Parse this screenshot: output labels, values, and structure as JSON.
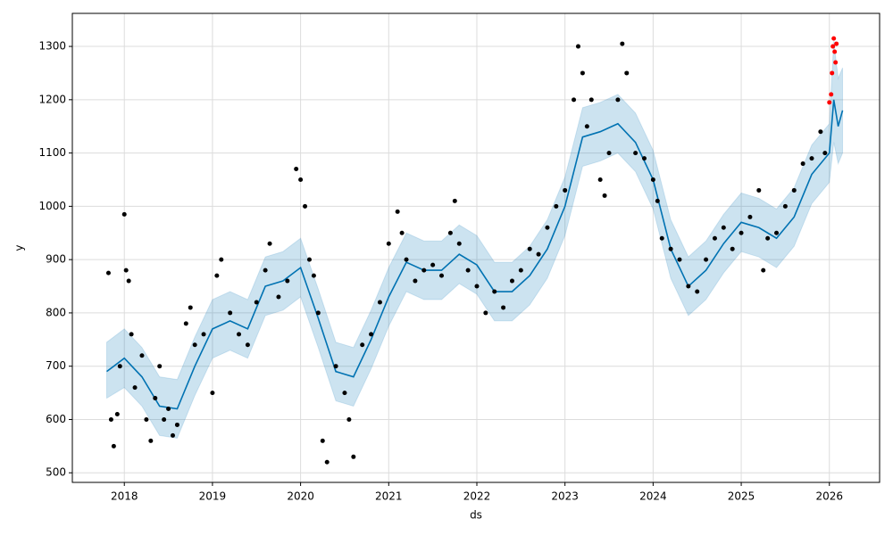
{
  "chart_data": {
    "type": "line",
    "xlabel": "ds",
    "ylabel": "y",
    "xlim": [
      2017.41,
      2026.57
    ],
    "ylim": [
      482,
      1362
    ],
    "xticks": [
      2018,
      2019,
      2020,
      2021,
      2022,
      2023,
      2024,
      2025,
      2026
    ],
    "yticks": [
      500,
      600,
      700,
      800,
      900,
      1000,
      1100,
      1200,
      1300
    ],
    "grid": true,
    "forecast": {
      "color": "#0072B2",
      "band_color": "#0072B2",
      "x": [
        2017.8,
        2018.0,
        2018.2,
        2018.4,
        2018.6,
        2018.8,
        2019.0,
        2019.2,
        2019.4,
        2019.6,
        2019.8,
        2020.0,
        2020.2,
        2020.4,
        2020.6,
        2020.8,
        2021.0,
        2021.2,
        2021.4,
        2021.6,
        2021.8,
        2022.0,
        2022.2,
        2022.4,
        2022.6,
        2022.8,
        2023.0,
        2023.2,
        2023.4,
        2023.6,
        2023.8,
        2024.0,
        2024.2,
        2024.4,
        2024.6,
        2024.8,
        2025.0,
        2025.2,
        2025.4,
        2025.6,
        2025.8,
        2026.0,
        2026.05,
        2026.1,
        2026.15
      ],
      "values": [
        690,
        715,
        680,
        625,
        620,
        700,
        770,
        785,
        770,
        850,
        860,
        885,
        790,
        690,
        680,
        750,
        830,
        895,
        880,
        880,
        910,
        890,
        840,
        840,
        870,
        920,
        1000,
        1130,
        1140,
        1155,
        1120,
        1050,
        920,
        850,
        880,
        930,
        970,
        960,
        940,
        980,
        1060,
        1100,
        1200,
        1150,
        1180
      ],
      "lower": [
        640,
        660,
        625,
        570,
        565,
        645,
        715,
        730,
        715,
        795,
        805,
        830,
        735,
        635,
        625,
        695,
        775,
        840,
        825,
        825,
        855,
        835,
        785,
        785,
        815,
        865,
        945,
        1075,
        1085,
        1100,
        1065,
        995,
        865,
        795,
        825,
        875,
        915,
        905,
        885,
        925,
        1005,
        1045,
        1120,
        1080,
        1100
      ],
      "upper": [
        745,
        770,
        735,
        680,
        675,
        755,
        825,
        840,
        825,
        905,
        915,
        940,
        845,
        745,
        735,
        805,
        885,
        950,
        935,
        935,
        965,
        945,
        895,
        895,
        925,
        975,
        1055,
        1185,
        1195,
        1210,
        1175,
        1105,
        975,
        905,
        935,
        985,
        1025,
        1015,
        995,
        1035,
        1115,
        1155,
        1310,
        1240,
        1260
      ]
    },
    "observed": {
      "color": "#000000",
      "x": [
        2017.82,
        2017.85,
        2017.88,
        2017.92,
        2017.95,
        2018.0,
        2018.02,
        2018.05,
        2018.08,
        2018.12,
        2018.2,
        2018.25,
        2018.3,
        2018.35,
        2018.4,
        2018.45,
        2018.5,
        2018.55,
        2018.6,
        2018.7,
        2018.75,
        2018.8,
        2018.9,
        2019.0,
        2019.05,
        2019.1,
        2019.2,
        2019.3,
        2019.4,
        2019.5,
        2019.6,
        2019.65,
        2019.75,
        2019.85,
        2019.95,
        2020.0,
        2020.05,
        2020.1,
        2020.15,
        2020.2,
        2020.25,
        2020.3,
        2020.4,
        2020.5,
        2020.55,
        2020.6,
        2020.7,
        2020.8,
        2020.9,
        2021.0,
        2021.1,
        2021.15,
        2021.2,
        2021.3,
        2021.4,
        2021.5,
        2021.6,
        2021.7,
        2021.75,
        2021.8,
        2021.9,
        2022.0,
        2022.1,
        2022.2,
        2022.3,
        2022.4,
        2022.5,
        2022.6,
        2022.7,
        2022.8,
        2022.9,
        2023.0,
        2023.1,
        2023.15,
        2023.2,
        2023.25,
        2023.3,
        2023.4,
        2023.45,
        2023.5,
        2023.6,
        2023.65,
        2023.7,
        2023.8,
        2023.9,
        2024.0,
        2024.05,
        2024.1,
        2024.2,
        2024.3,
        2024.4,
        2024.5,
        2024.6,
        2024.7,
        2024.8,
        2024.9,
        2025.0,
        2025.1,
        2025.2,
        2025.25,
        2025.3,
        2025.4,
        2025.5,
        2025.6,
        2025.7,
        2025.8,
        2025.9,
        2025.95
      ],
      "values": [
        875,
        600,
        550,
        610,
        700,
        985,
        880,
        860,
        760,
        660,
        720,
        600,
        560,
        640,
        700,
        600,
        620,
        570,
        590,
        780,
        810,
        740,
        760,
        650,
        870,
        900,
        800,
        760,
        740,
        820,
        880,
        930,
        830,
        860,
        1070,
        1050,
        1000,
        900,
        870,
        800,
        560,
        520,
        700,
        650,
        600,
        530,
        740,
        760,
        820,
        930,
        990,
        950,
        900,
        860,
        880,
        890,
        870,
        950,
        1010,
        930,
        880,
        850,
        800,
        840,
        810,
        860,
        880,
        920,
        910,
        960,
        1000,
        1030,
        1200,
        1300,
        1250,
        1150,
        1200,
        1050,
        1020,
        1100,
        1200,
        1305,
        1250,
        1100,
        1090,
        1050,
        1010,
        940,
        920,
        900,
        850,
        840,
        900,
        940,
        960,
        920,
        950,
        980,
        1030,
        880,
        940,
        950,
        1000,
        1030,
        1080,
        1090,
        1140,
        1100
      ]
    },
    "recent": {
      "color": "#ff0000",
      "x": [
        2026.0,
        2026.02,
        2026.03,
        2026.04,
        2026.05,
        2026.06,
        2026.07,
        2026.08
      ],
      "values": [
        1195,
        1210,
        1250,
        1300,
        1315,
        1290,
        1270,
        1305
      ]
    }
  }
}
